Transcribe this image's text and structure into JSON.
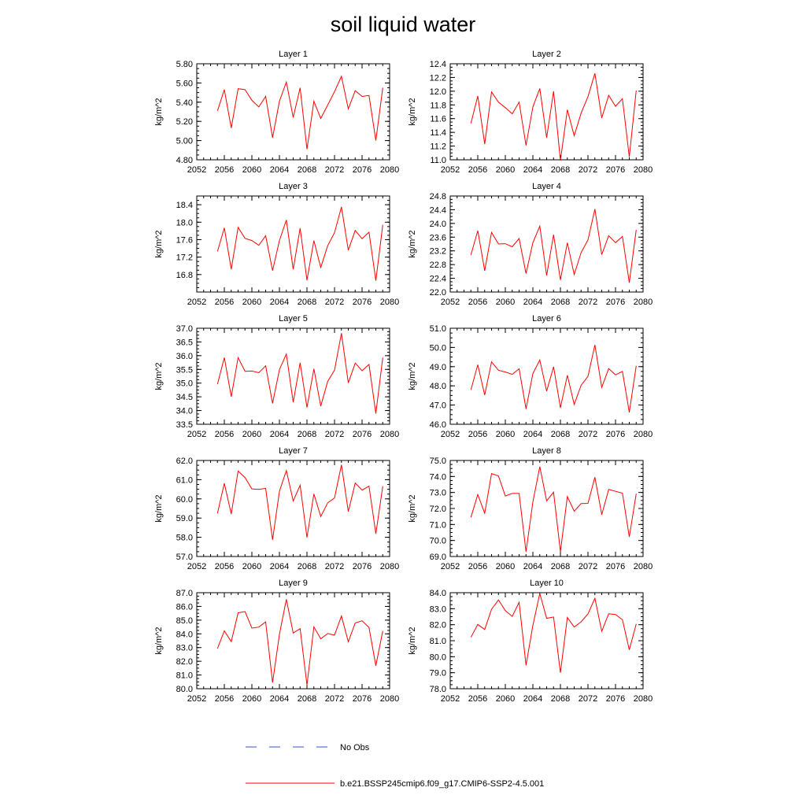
{
  "title": "soil liquid water",
  "colors": {
    "series": "#ff0000",
    "obs": "#3355cc",
    "axis": "#000000"
  },
  "legend": {
    "placement": "bottom-center",
    "entries": [
      {
        "label": "No Obs",
        "style": "dashed",
        "color": "#3355cc"
      },
      {
        "label": "b.e21.BSSP245cmip6.f09_g17.CMIP6-SSP2-4.5.001",
        "style": "solid",
        "color": "#ff0000"
      }
    ]
  },
  "chart_data": [
    {
      "type": "line",
      "title": "Layer 1",
      "ylabel": "kg/m^2",
      "xlim": [
        2052,
        2080
      ],
      "ylim": [
        4.8,
        5.8
      ],
      "xticks": [
        "2052",
        "2056",
        "2060",
        "2064",
        "2068",
        "2072",
        "2076",
        "2080"
      ],
      "yticks": [
        "4.80",
        "5.00",
        "5.20",
        "5.40",
        "5.60",
        "5.80"
      ],
      "x": [
        2055,
        2056,
        2057,
        2058,
        2059,
        2060,
        2061,
        2062,
        2063,
        2064,
        2065,
        2066,
        2067,
        2068,
        2069,
        2070,
        2071,
        2072,
        2073,
        2074,
        2075,
        2076,
        2077,
        2078,
        2079
      ],
      "series": [
        {
          "name": "b.e21.BSSP245cmip6.f09_g17.CMIP6-SSP2-4.5.001",
          "values": [
            5.31,
            5.53,
            5.13,
            5.54,
            5.53,
            5.42,
            5.35,
            5.46,
            5.03,
            5.41,
            5.61,
            5.24,
            5.55,
            4.91,
            5.41,
            5.23,
            5.37,
            5.51,
            5.67,
            5.33,
            5.52,
            5.46,
            5.47,
            5.0,
            5.55
          ]
        }
      ]
    },
    {
      "type": "line",
      "title": "Layer 2",
      "ylabel": "kg/m^2",
      "xlim": [
        2052,
        2080
      ],
      "ylim": [
        11.0,
        12.4
      ],
      "xticks": [
        "2052",
        "2056",
        "2060",
        "2064",
        "2068",
        "2072",
        "2076",
        "2080"
      ],
      "yticks": [
        "11.0",
        "11.2",
        "11.4",
        "11.6",
        "11.8",
        "12.0",
        "12.2",
        "12.4"
      ],
      "x": [
        2055,
        2056,
        2057,
        2058,
        2059,
        2060,
        2061,
        2062,
        2063,
        2064,
        2065,
        2066,
        2067,
        2068,
        2069,
        2070,
        2071,
        2072,
        2073,
        2074,
        2075,
        2076,
        2077,
        2078,
        2079
      ],
      "series": [
        {
          "name": "b.e21.BSSP245cmip6.f09_g17.CMIP6-SSP2-4.5.001",
          "values": [
            11.53,
            11.93,
            11.23,
            11.99,
            11.84,
            11.76,
            11.67,
            11.84,
            11.21,
            11.77,
            12.04,
            11.32,
            12.0,
            10.99,
            11.73,
            11.35,
            11.68,
            11.92,
            12.26,
            11.61,
            11.94,
            11.78,
            11.89,
            11.04,
            12.01
          ]
        }
      ]
    },
    {
      "type": "line",
      "title": "Layer 3",
      "ylabel": "kg/m^2",
      "xlim": [
        2052,
        2080
      ],
      "ylim": [
        16.4,
        18.6
      ],
      "xticks": [
        "2052",
        "2056",
        "2060",
        "2064",
        "2068",
        "2072",
        "2076",
        "2080"
      ],
      "yticks": [
        "16.8",
        "17.2",
        "17.6",
        "18.0",
        "18.4"
      ],
      "x": [
        2055,
        2056,
        2057,
        2058,
        2059,
        2060,
        2061,
        2062,
        2063,
        2064,
        2065,
        2066,
        2067,
        2068,
        2069,
        2070,
        2071,
        2072,
        2073,
        2074,
        2075,
        2076,
        2077,
        2078,
        2079
      ],
      "series": [
        {
          "name": "b.e21.BSSP245cmip6.f09_g17.CMIP6-SSP2-4.5.001",
          "values": [
            17.33,
            17.87,
            16.92,
            17.88,
            17.63,
            17.58,
            17.47,
            17.69,
            16.89,
            17.58,
            18.05,
            16.92,
            17.86,
            16.67,
            17.58,
            16.96,
            17.46,
            17.76,
            18.35,
            17.36,
            17.81,
            17.62,
            17.77,
            16.66,
            17.94
          ]
        }
      ]
    },
    {
      "type": "line",
      "title": "Layer 4",
      "ylabel": "kg/m^2",
      "xlim": [
        2052,
        2080
      ],
      "ylim": [
        22.0,
        24.8
      ],
      "xticks": [
        "2052",
        "2056",
        "2060",
        "2064",
        "2068",
        "2072",
        "2076",
        "2080"
      ],
      "yticks": [
        "22.0",
        "22.4",
        "22.8",
        "23.2",
        "23.6",
        "24.0",
        "24.4",
        "24.8"
      ],
      "x": [
        2055,
        2056,
        2057,
        2058,
        2059,
        2060,
        2061,
        2062,
        2063,
        2064,
        2065,
        2066,
        2067,
        2068,
        2069,
        2070,
        2071,
        2072,
        2073,
        2074,
        2075,
        2076,
        2077,
        2078,
        2079
      ],
      "series": [
        {
          "name": "b.e21.BSSP245cmip6.f09_g17.CMIP6-SSP2-4.5.001",
          "values": [
            23.08,
            23.79,
            22.62,
            23.74,
            23.4,
            23.41,
            23.32,
            23.56,
            22.54,
            23.44,
            23.92,
            22.48,
            23.67,
            22.35,
            23.44,
            22.51,
            23.15,
            23.52,
            24.42,
            23.09,
            23.64,
            23.44,
            23.62,
            22.27,
            23.81
          ]
        }
      ]
    },
    {
      "type": "line",
      "title": "Layer 5",
      "ylabel": "kg/m^2",
      "xlim": [
        2052,
        2080
      ],
      "ylim": [
        33.5,
        37.0
      ],
      "xticks": [
        "2052",
        "2056",
        "2060",
        "2064",
        "2068",
        "2072",
        "2076",
        "2080"
      ],
      "yticks": [
        "33.5",
        "34.0",
        "34.5",
        "35.0",
        "35.5",
        "36.0",
        "36.5",
        "37.0"
      ],
      "x": [
        2055,
        2056,
        2057,
        2058,
        2059,
        2060,
        2061,
        2062,
        2063,
        2064,
        2065,
        2066,
        2067,
        2068,
        2069,
        2070,
        2071,
        2072,
        2073,
        2074,
        2075,
        2076,
        2077,
        2078,
        2079
      ],
      "series": [
        {
          "name": "b.e21.BSSP245cmip6.f09_g17.CMIP6-SSP2-4.5.001",
          "values": [
            34.96,
            35.93,
            34.5,
            35.93,
            35.43,
            35.44,
            35.38,
            35.63,
            34.26,
            35.49,
            36.06,
            34.3,
            35.74,
            34.11,
            35.52,
            34.16,
            35.06,
            35.47,
            36.82,
            35.01,
            35.73,
            35.45,
            35.68,
            33.89,
            35.93
          ]
        }
      ]
    },
    {
      "type": "line",
      "title": "Layer 6",
      "ylabel": "kg/m^2",
      "xlim": [
        2052,
        2080
      ],
      "ylim": [
        46.0,
        51.0
      ],
      "xticks": [
        "2052",
        "2056",
        "2060",
        "2064",
        "2068",
        "2072",
        "2076",
        "2080"
      ],
      "yticks": [
        "46.0",
        "47.0",
        "48.0",
        "49.0",
        "50.0",
        "51.0"
      ],
      "x": [
        2055,
        2056,
        2057,
        2058,
        2059,
        2060,
        2061,
        2062,
        2063,
        2064,
        2065,
        2066,
        2067,
        2068,
        2069,
        2070,
        2071,
        2072,
        2073,
        2074,
        2075,
        2076,
        2077,
        2078,
        2079
      ],
      "series": [
        {
          "name": "b.e21.BSSP245cmip6.f09_g17.CMIP6-SSP2-4.5.001",
          "values": [
            47.79,
            49.1,
            47.52,
            49.25,
            48.81,
            48.72,
            48.6,
            48.89,
            46.8,
            48.64,
            49.35,
            47.72,
            48.99,
            46.86,
            48.55,
            47.03,
            48.03,
            48.49,
            50.13,
            47.92,
            48.9,
            48.57,
            48.75,
            46.62,
            49.04
          ]
        }
      ]
    },
    {
      "type": "line",
      "title": "Layer 7",
      "ylabel": "kg/m^2",
      "xlim": [
        2052,
        2080
      ],
      "ylim": [
        57.0,
        62.0
      ],
      "xticks": [
        "2052",
        "2056",
        "2060",
        "2064",
        "2068",
        "2072",
        "2076",
        "2080"
      ],
      "yticks": [
        "57.0",
        "58.0",
        "59.0",
        "60.0",
        "61.0",
        "62.0"
      ],
      "x": [
        2055,
        2056,
        2057,
        2058,
        2059,
        2060,
        2061,
        2062,
        2063,
        2064,
        2065,
        2066,
        2067,
        2068,
        2069,
        2070,
        2071,
        2072,
        2073,
        2074,
        2075,
        2076,
        2077,
        2078,
        2079
      ],
      "series": [
        {
          "name": "b.e21.BSSP245cmip6.f09_g17.CMIP6-SSP2-4.5.001",
          "values": [
            59.25,
            60.81,
            59.21,
            61.45,
            61.11,
            60.52,
            60.49,
            60.55,
            57.87,
            60.39,
            61.48,
            59.89,
            60.71,
            57.99,
            60.26,
            59.08,
            59.79,
            60.05,
            61.77,
            59.34,
            60.82,
            60.46,
            60.66,
            58.18,
            60.66
          ]
        }
      ]
    },
    {
      "type": "line",
      "title": "Layer 8",
      "ylabel": "kg/m^2",
      "xlim": [
        2052,
        2080
      ],
      "ylim": [
        69.0,
        75.0
      ],
      "xticks": [
        "2052",
        "2056",
        "2060",
        "2064",
        "2068",
        "2072",
        "2076",
        "2080"
      ],
      "yticks": [
        "69.0",
        "70.0",
        "71.0",
        "72.0",
        "73.0",
        "74.0",
        "75.0"
      ],
      "x": [
        2055,
        2056,
        2057,
        2058,
        2059,
        2060,
        2061,
        2062,
        2063,
        2064,
        2065,
        2066,
        2067,
        2068,
        2069,
        2070,
        2071,
        2072,
        2073,
        2074,
        2075,
        2076,
        2077,
        2078,
        2079
      ],
      "series": [
        {
          "name": "b.e21.BSSP245cmip6.f09_g17.CMIP6-SSP2-4.5.001",
          "values": [
            71.45,
            72.87,
            71.7,
            74.18,
            74.03,
            72.78,
            72.94,
            72.94,
            69.29,
            72.41,
            74.61,
            72.47,
            73.02,
            69.29,
            72.75,
            71.83,
            72.31,
            72.32,
            73.95,
            71.61,
            73.19,
            73.07,
            72.96,
            70.22,
            72.92
          ]
        }
      ]
    },
    {
      "type": "line",
      "title": "Layer 9",
      "ylabel": "kg/m^2",
      "xlim": [
        2052,
        2080
      ],
      "ylim": [
        80.0,
        87.0
      ],
      "xticks": [
        "2052",
        "2056",
        "2060",
        "2064",
        "2068",
        "2072",
        "2076",
        "2080"
      ],
      "yticks": [
        "80.0",
        "81.0",
        "82.0",
        "83.0",
        "84.0",
        "85.0",
        "86.0",
        "87.0"
      ],
      "x": [
        2055,
        2056,
        2057,
        2058,
        2059,
        2060,
        2061,
        2062,
        2063,
        2064,
        2065,
        2066,
        2067,
        2068,
        2069,
        2070,
        2071,
        2072,
        2073,
        2074,
        2075,
        2076,
        2077,
        2078,
        2079
      ],
      "series": [
        {
          "name": "b.e21.BSSP245cmip6.f09_g17.CMIP6-SSP2-4.5.001",
          "values": [
            82.93,
            84.22,
            83.43,
            85.53,
            85.63,
            84.42,
            84.49,
            84.87,
            80.45,
            83.96,
            86.52,
            84.06,
            84.38,
            80.26,
            84.51,
            83.64,
            84.02,
            83.91,
            85.3,
            83.42,
            84.79,
            84.95,
            84.47,
            81.67,
            84.21
          ]
        }
      ]
    },
    {
      "type": "line",
      "title": "Layer 10",
      "ylabel": "kg/m^2",
      "xlim": [
        2052,
        2080
      ],
      "ylim": [
        78.0,
        84.0
      ],
      "xticks": [
        "2052",
        "2056",
        "2060",
        "2064",
        "2068",
        "2072",
        "2076",
        "2080"
      ],
      "yticks": [
        "78.0",
        "79.0",
        "80.0",
        "81.0",
        "82.0",
        "83.0",
        "84.0"
      ],
      "x": [
        2055,
        2056,
        2057,
        2058,
        2059,
        2060,
        2061,
        2062,
        2063,
        2064,
        2065,
        2066,
        2067,
        2068,
        2069,
        2070,
        2071,
        2072,
        2073,
        2074,
        2075,
        2076,
        2077,
        2078,
        2079
      ],
      "series": [
        {
          "name": "b.e21.BSSP245cmip6.f09_g17.CMIP6-SSP2-4.5.001",
          "values": [
            81.21,
            82.02,
            81.7,
            82.96,
            83.55,
            82.88,
            82.52,
            83.4,
            79.46,
            81.96,
            83.95,
            82.4,
            82.48,
            79.0,
            82.45,
            81.85,
            82.18,
            82.67,
            83.65,
            81.59,
            82.68,
            82.64,
            82.31,
            80.43,
            82.05
          ]
        }
      ]
    }
  ]
}
